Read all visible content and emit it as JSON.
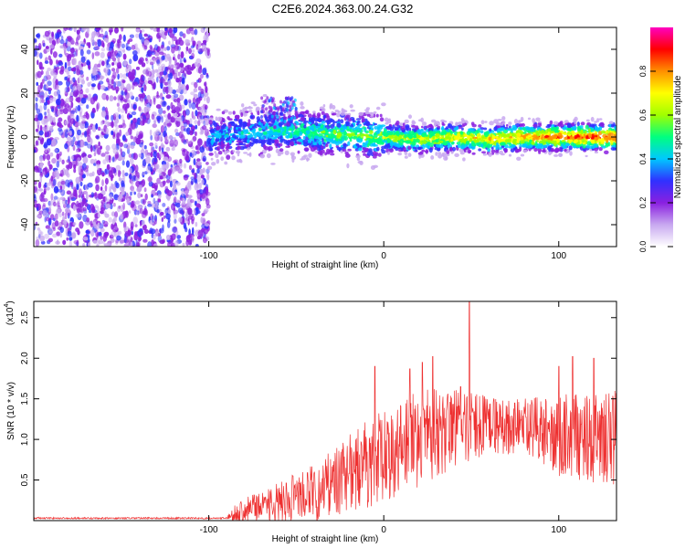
{
  "title": "C2E6.2024.363.00.24.G32",
  "chart_data": [
    {
      "type": "heatmap",
      "name": "spectrogram",
      "xlabel": "Height of straight line (km)",
      "ylabel": "Frequency (Hz)",
      "xlim": [
        -200,
        133
      ],
      "ylim": [
        -50,
        50
      ],
      "xticks": [
        -100,
        0,
        100
      ],
      "xtick_labels": [
        "-100",
        "0",
        "100"
      ],
      "yticks": [
        -40,
        -20,
        0,
        20,
        40
      ],
      "ytick_labels": [
        "-40",
        "-20",
        "0",
        "20",
        "40"
      ],
      "noise_region_x": [
        -200,
        -100
      ],
      "signal_band_width_hz": 8,
      "signal_centerline": [
        {
          "x": -100,
          "y": 0
        },
        {
          "x": -80,
          "y": 2
        },
        {
          "x": -60,
          "y": 3
        },
        {
          "x": -40,
          "y": 2
        },
        {
          "x": -20,
          "y": 1
        },
        {
          "x": 0,
          "y": 0
        },
        {
          "x": 20,
          "y": -1
        },
        {
          "x": 40,
          "y": 0
        },
        {
          "x": 60,
          "y": -1
        },
        {
          "x": 80,
          "y": 0
        },
        {
          "x": 100,
          "y": 0
        },
        {
          "x": 120,
          "y": 0
        },
        {
          "x": 133,
          "y": 0
        }
      ],
      "colorbar": {
        "label": "Normalized spectral amplitude",
        "range": [
          0.0,
          1.0
        ],
        "ticks": [
          0.0,
          0.2,
          0.4,
          0.6,
          0.8
        ],
        "tick_labels": [
          "0.0",
          "0.2",
          "0.4",
          "0.6",
          "0.8"
        ],
        "colors": [
          "#ffffff",
          "#c8a8f0",
          "#8a20e0",
          "#3030ff",
          "#00c8ff",
          "#00ff80",
          "#a0ff00",
          "#ffff00",
          "#ff9000",
          "#ff0000",
          "#ff00c0"
        ]
      }
    },
    {
      "type": "line",
      "name": "snr",
      "xlabel": "Height of straight line (km)",
      "ylabel": "SNR (10 * v/v)",
      "y_multiplier_label": "(x10",
      "y_multiplier_exp": "4",
      "y_multiplier_close": ")",
      "xlim": [
        -200,
        133
      ],
      "ylim": [
        0,
        2.7
      ],
      "xticks": [
        -100,
        0,
        100
      ],
      "xtick_labels": [
        "-100",
        "0",
        "100"
      ],
      "yticks": [
        0.5,
        1.0,
        1.5,
        2.0,
        2.5
      ],
      "ytick_labels": [
        "0.5",
        "1.0",
        "1.5",
        "2.0",
        "2.5"
      ],
      "line_color": "#ee3030",
      "envelope": [
        {
          "x": -200,
          "base": 0.03,
          "amp": 0.01
        },
        {
          "x": -90,
          "base": 0.03,
          "amp": 0.01
        },
        {
          "x": -85,
          "base": 0.1,
          "amp": 0.12
        },
        {
          "x": -60,
          "base": 0.22,
          "amp": 0.25
        },
        {
          "x": -40,
          "base": 0.35,
          "amp": 0.35
        },
        {
          "x": -20,
          "base": 0.55,
          "amp": 0.5
        },
        {
          "x": 0,
          "base": 0.8,
          "amp": 0.6
        },
        {
          "x": 20,
          "base": 1.0,
          "amp": 0.6
        },
        {
          "x": 40,
          "base": 1.15,
          "amp": 0.5
        },
        {
          "x": 60,
          "base": 1.18,
          "amp": 0.35
        },
        {
          "x": 80,
          "base": 1.15,
          "amp": 0.35
        },
        {
          "x": 100,
          "base": 1.05,
          "amp": 0.5
        },
        {
          "x": 133,
          "base": 1.0,
          "amp": 0.6
        }
      ],
      "peaks": [
        {
          "x": 49,
          "y": 2.7
        },
        {
          "x": 28,
          "y": 2.02
        },
        {
          "x": 22,
          "y": 1.95
        },
        {
          "x": 15,
          "y": 1.87
        },
        {
          "x": -5,
          "y": 1.9
        },
        {
          "x": 108,
          "y": 2.02
        },
        {
          "x": 120,
          "y": 2.0
        },
        {
          "x": 100,
          "y": 1.9
        },
        {
          "x": 44,
          "y": 1.65
        }
      ]
    }
  ]
}
